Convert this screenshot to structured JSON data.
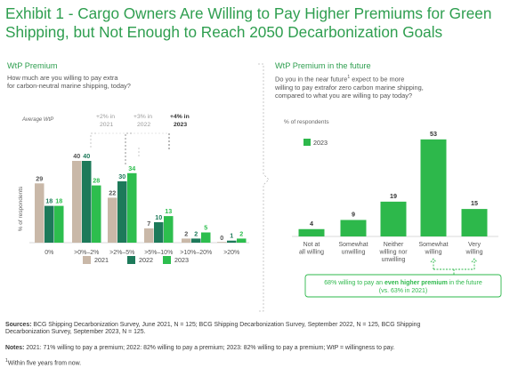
{
  "title_lines": [
    "Exhibit 1 - Cargo Owners Are Willing to Pay Higher Premiums for Green",
    "Shipping, but Not Enough to Reach 2050 Decarbonization Goals"
  ],
  "left": {
    "panel_title": "WtP Premium",
    "question_lines": [
      "How much are you willing to pay extra",
      "for carbon-neutral marine shipping, today?"
    ],
    "average_label": "Average WtP",
    "averages": [
      {
        "lines": [
          "+2% in",
          "2021"
        ],
        "bold": false
      },
      {
        "lines": [
          "+3% in",
          "2022"
        ],
        "bold": false
      },
      {
        "lines": [
          "+4% in",
          "2023"
        ],
        "bold": true
      }
    ]
  },
  "right": {
    "panel_title": "WtP Premium in the future",
    "question_lines": [
      "Do you in the near future",
      "expect to be more",
      "willing to pay extrafor zero carbon marine shipping,",
      "compared to what you are willing to pay today?"
    ],
    "footnote_marker": "1",
    "callout": {
      "prefix": "68% willing to pay an ",
      "highlight": "even higher premium",
      "suffix": " in the future",
      "second_line": "(vs. 63% in 2021)"
    }
  },
  "colors": {
    "green_title": "#2e9e4f",
    "y2021": "#c9b8a8",
    "y2022": "#1d7a5a",
    "y2023": "#2dbe4e",
    "right_bar": "#2db84b"
  },
  "chart_data": [
    {
      "type": "bar",
      "title": "WtP Premium",
      "ylabel": "% of respondents",
      "categories": [
        "0%",
        ">0%–2%",
        ">2%–5%",
        ">5%–10%",
        ">10%–20%",
        ">20%"
      ],
      "series": [
        {
          "name": "2021",
          "values": [
            29,
            40,
            22,
            7,
            2,
            0
          ]
        },
        {
          "name": "2022",
          "values": [
            18,
            40,
            30,
            10,
            2,
            1
          ]
        },
        {
          "name": "2023",
          "values": [
            18,
            28,
            34,
            13,
            5,
            2
          ]
        }
      ],
      "legend": "bottom",
      "ylim": [
        0,
        45
      ]
    },
    {
      "type": "bar",
      "title": "WtP Premium in the future",
      "ylabel": "% of respondents",
      "categories": [
        [
          "Not at",
          "all willing"
        ],
        [
          "Somewhat",
          "unwilling"
        ],
        [
          "Neither",
          "willing nor",
          "unwilling"
        ],
        [
          "Somewhat",
          "willing"
        ],
        [
          "Very",
          "willing"
        ]
      ],
      "series": [
        {
          "name": "2023",
          "values": [
            4,
            9,
            19,
            53,
            15
          ]
        }
      ],
      "legend": "top-left",
      "ylim": [
        0,
        55
      ]
    }
  ],
  "footer": {
    "sources_label": "Sources:",
    "sources_lines": [
      " BCG Shipping Decarbonization Survey, June 2021, N = 125; BCG Shipping Decarbonization Survey, September 2022, N = 125, BCG Shipping",
      "Decarbonization Survey, September 2023, N = 125."
    ],
    "notes_label": "Notes:",
    "notes_text": " 2021: 71% willing to pay a premium; 2022: 82% willing to pay a premium; 2023: 82% willing to pay a premium;  WtP = willingness to pay.",
    "footnote_marker": "1",
    "footnote_text": "Within five years from now."
  }
}
